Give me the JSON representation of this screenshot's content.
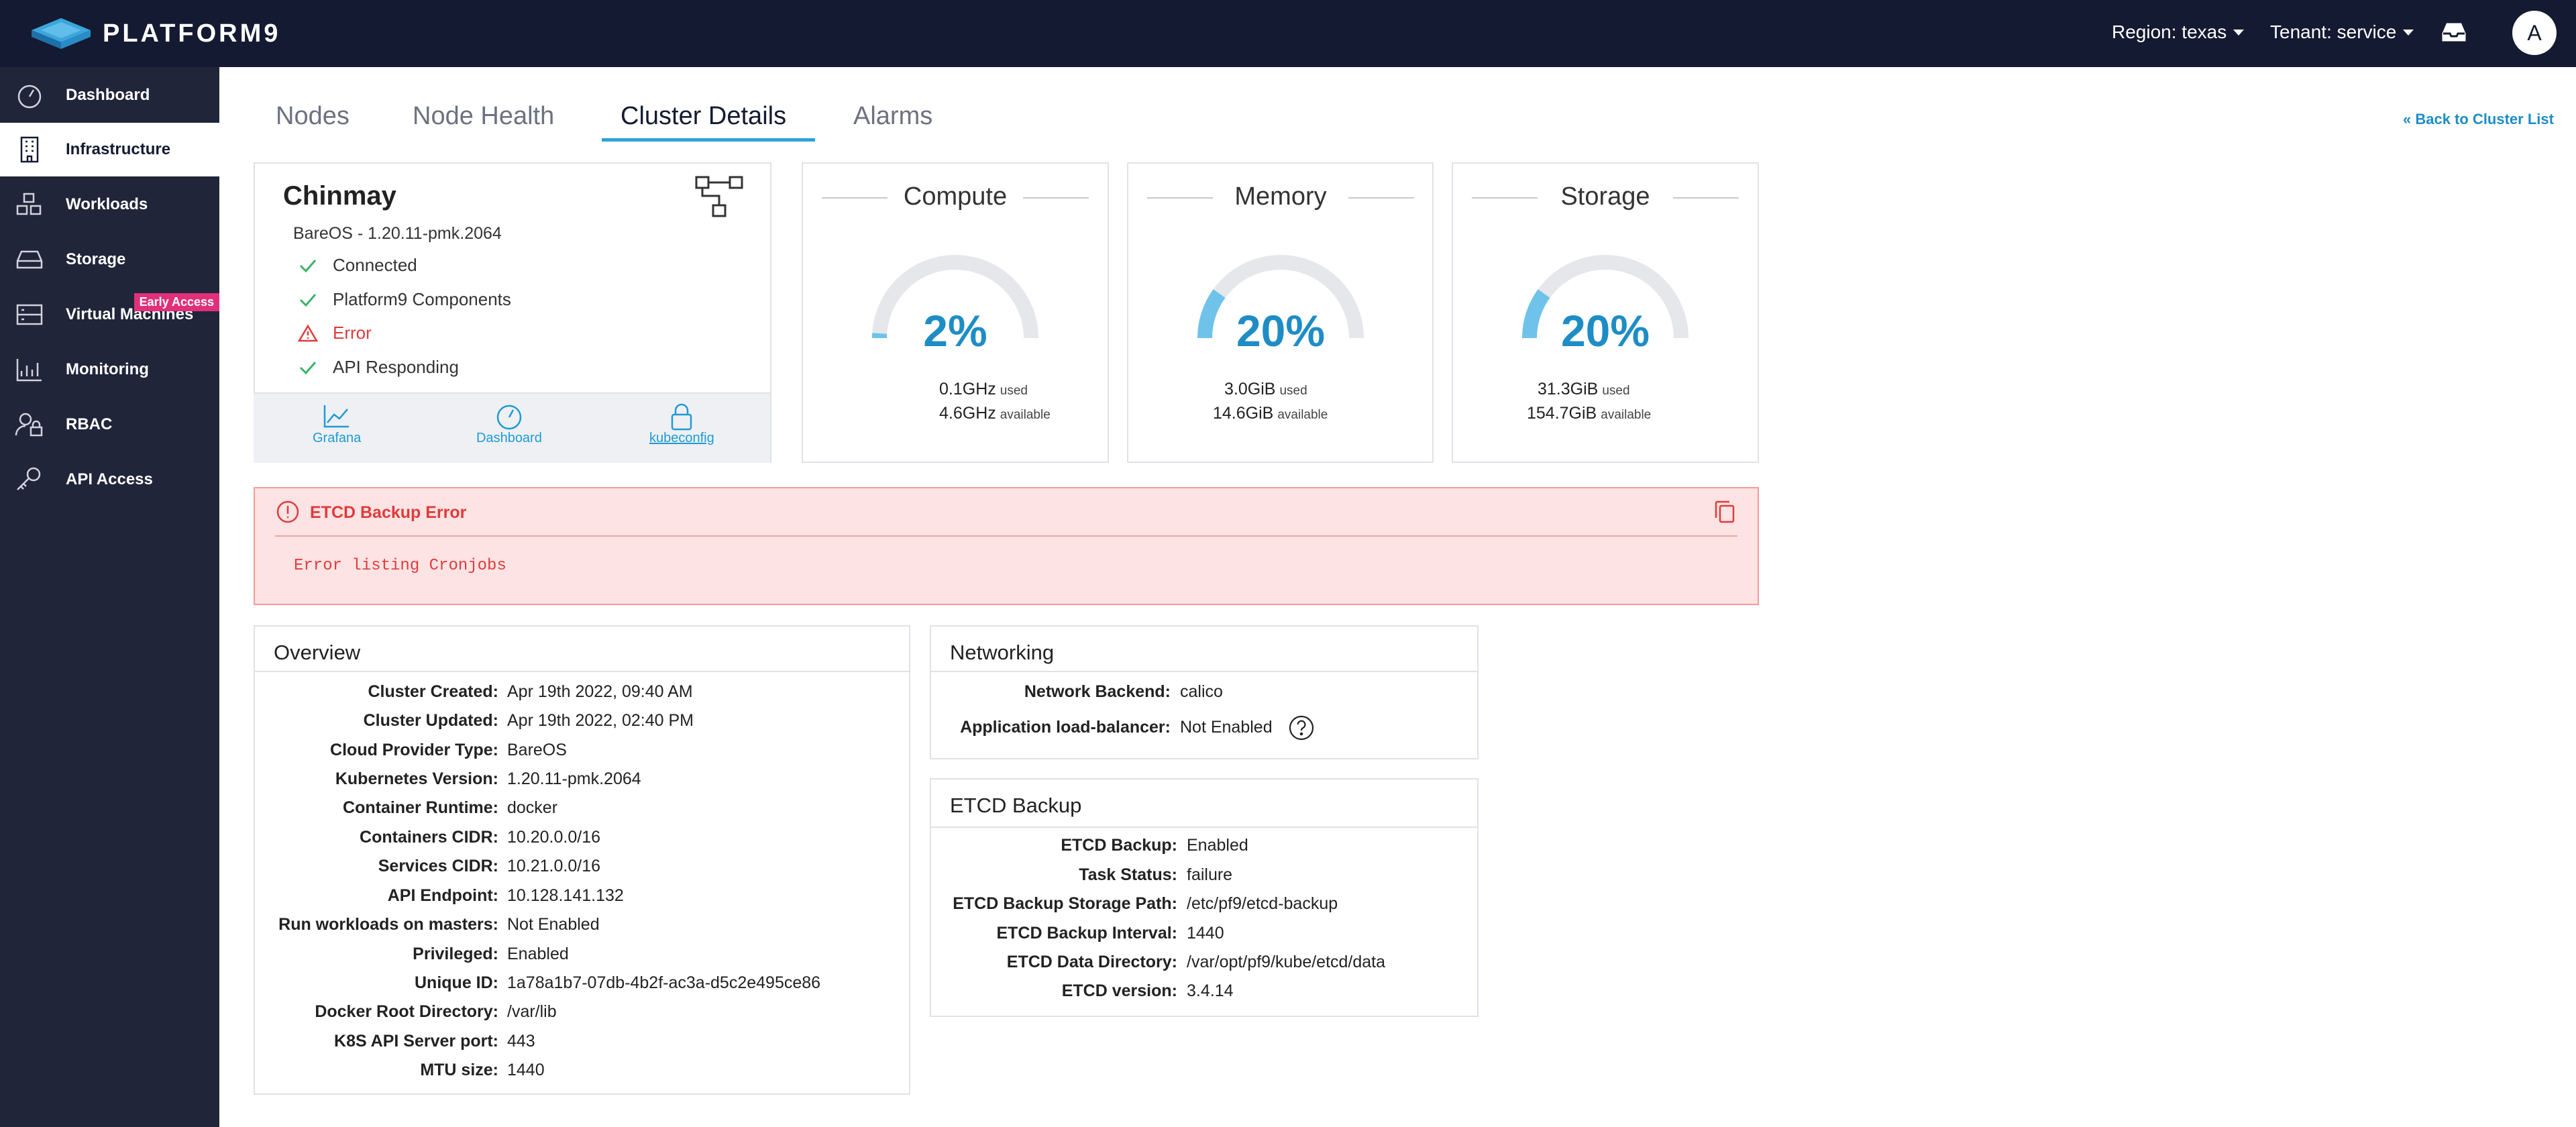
{
  "app": {
    "logo_text": "PLATFORM9"
  },
  "topbar": {
    "region": "Region: texas",
    "tenant": "Tenant: service",
    "avatar_letter": "A"
  },
  "sidebar": {
    "items": [
      {
        "label": "Dashboard",
        "icon": "dashboard-icon"
      },
      {
        "label": "Infrastructure",
        "icon": "building-icon",
        "active": true
      },
      {
        "label": "Workloads",
        "icon": "cubes-icon"
      },
      {
        "label": "Storage",
        "icon": "hard-drive-icon"
      },
      {
        "label": "Virtual Machines",
        "icon": "server-icon",
        "badge": "Early Access"
      },
      {
        "label": "Monitoring",
        "icon": "chart-icon"
      },
      {
        "label": "RBAC",
        "icon": "user-lock-icon"
      },
      {
        "label": "API Access",
        "icon": "key-icon"
      }
    ]
  },
  "tabs": [
    {
      "label": "Nodes"
    },
    {
      "label": "Node Health"
    },
    {
      "label": "Cluster Details",
      "active": true
    },
    {
      "label": "Alarms"
    }
  ],
  "back_link": "« Back to Cluster List",
  "cluster": {
    "name": "Chinmay",
    "version": "BareOS - 1.20.11-pmk.2064",
    "statuses": [
      {
        "label": "Connected",
        "state": "ok"
      },
      {
        "label": "Platform9 Components",
        "state": "ok"
      },
      {
        "label": "Error",
        "state": "error"
      },
      {
        "label": "API Responding",
        "state": "ok"
      }
    ],
    "links": [
      {
        "label": "Grafana",
        "icon": "chart-line-icon"
      },
      {
        "label": "Dashboard",
        "icon": "dashboard-icon"
      },
      {
        "label": "kubeconfig",
        "icon": "lock-icon"
      }
    ]
  },
  "gauges": [
    {
      "title": "Compute",
      "percent_label": "2%",
      "percent": 2,
      "used": "0.1GHz",
      "used_suffix": "used",
      "available": "4.6GHz",
      "available_suffix": "available"
    },
    {
      "title": "Memory",
      "percent_label": "20%",
      "percent": 20,
      "used": "3.0GiB",
      "used_suffix": "used",
      "available": "14.6GiB",
      "available_suffix": "available"
    },
    {
      "title": "Storage",
      "percent_label": "20%",
      "percent": 20,
      "used": "31.3GiB",
      "used_suffix": "used",
      "available": "154.7GiB",
      "available_suffix": "available"
    }
  ],
  "colors": {
    "gauge_track": "#e6e7eb",
    "gauge_fill": "#6fc3ea",
    "accent": "#1e8dc5",
    "error": "#e03b3b",
    "nav_bg": "#141a31"
  },
  "error_box": {
    "title": "ETCD Backup Error",
    "message": "Error listing Cronjobs"
  },
  "overview": {
    "title": "Overview",
    "rows": [
      {
        "key": "Cluster Created:",
        "value": "Apr 19th 2022, 09:40 AM"
      },
      {
        "key": "Cluster Updated:",
        "value": "Apr 19th 2022, 02:40 PM"
      },
      {
        "key": "Cloud Provider Type:",
        "value": "BareOS"
      },
      {
        "key": "Kubernetes Version:",
        "value": "1.20.11-pmk.2064"
      },
      {
        "key": "Container Runtime:",
        "value": "docker"
      },
      {
        "key": "Containers CIDR:",
        "value": "10.20.0.0/16"
      },
      {
        "key": "Services CIDR:",
        "value": "10.21.0.0/16"
      },
      {
        "key": "API Endpoint:",
        "value": "10.128.141.132"
      },
      {
        "key": "Run workloads on masters:",
        "value": "Not Enabled"
      },
      {
        "key": "Privileged:",
        "value": "Enabled"
      },
      {
        "key": "Unique ID:",
        "value": "1a78a1b7-07db-4b2f-ac3a-d5c2e495ce86"
      },
      {
        "key": "Docker Root Directory:",
        "value": "/var/lib"
      },
      {
        "key": "K8S API Server port:",
        "value": "443"
      },
      {
        "key": "MTU size:",
        "value": "1440"
      }
    ]
  },
  "networking": {
    "title": "Networking",
    "rows": [
      {
        "key": "Network Backend:",
        "value": "calico"
      },
      {
        "key": "Application load-balancer:",
        "value": "Not Enabled"
      }
    ]
  },
  "etcd": {
    "title": "ETCD Backup",
    "rows": [
      {
        "key": "ETCD Backup:",
        "value": "Enabled"
      },
      {
        "key": "Task Status:",
        "value": "failure"
      },
      {
        "key": "ETCD Backup Storage Path:",
        "value": "/etc/pf9/etcd-backup"
      },
      {
        "key": "ETCD Backup Interval:",
        "value": "1440"
      },
      {
        "key": "ETCD Data Directory:",
        "value": "/var/opt/pf9/kube/etcd/data"
      },
      {
        "key": "ETCD version:",
        "value": "3.4.14"
      }
    ]
  }
}
